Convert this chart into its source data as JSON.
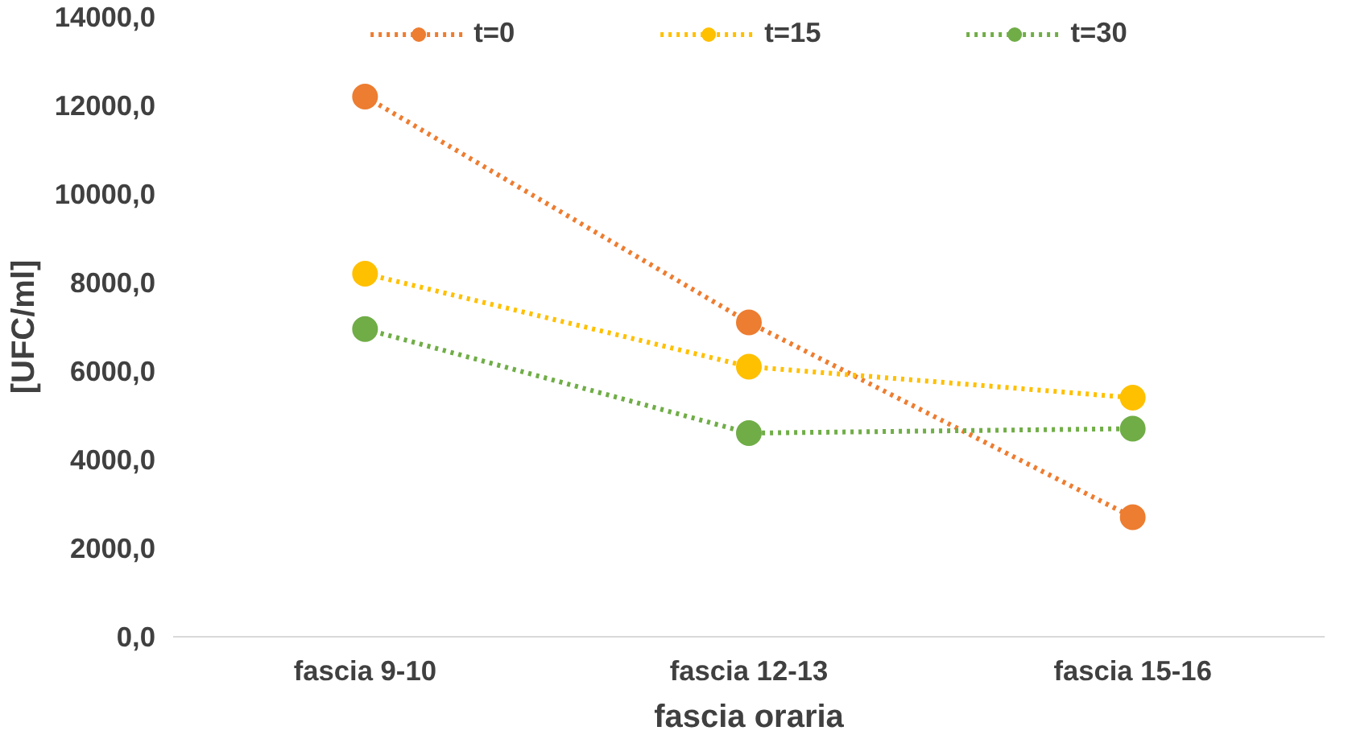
{
  "chart_data": {
    "type": "line",
    "xlabel": "fascia oraria",
    "ylabel": "[UFC/ml]",
    "categories": [
      "fascia 9-10",
      "fascia 12-13",
      "fascia 15-16"
    ],
    "series": [
      {
        "name": "t=0",
        "color": "#ed7d31",
        "values": [
          12200,
          7100,
          2700
        ]
      },
      {
        "name": "t=15",
        "color": "#ffc000",
        "values": [
          8200,
          6100,
          5400
        ]
      },
      {
        "name": "t=30",
        "color": "#70ad47",
        "values": [
          6950,
          4600,
          4700
        ]
      }
    ],
    "ylim": [
      0,
      14000
    ],
    "yticks": [
      {
        "value": 0,
        "label": "0,0"
      },
      {
        "value": 2000,
        "label": "2000,0"
      },
      {
        "value": 4000,
        "label": "4000,0"
      },
      {
        "value": 6000,
        "label": "6000,0"
      },
      {
        "value": 8000,
        "label": "8000,0"
      },
      {
        "value": 10000,
        "label": "10000,0"
      },
      {
        "value": 12000,
        "label": "12000,0"
      },
      {
        "value": 14000,
        "label": "14000,0"
      }
    ],
    "grid": false,
    "legend": "top",
    "marker": "circle",
    "line_style": "dotted"
  }
}
